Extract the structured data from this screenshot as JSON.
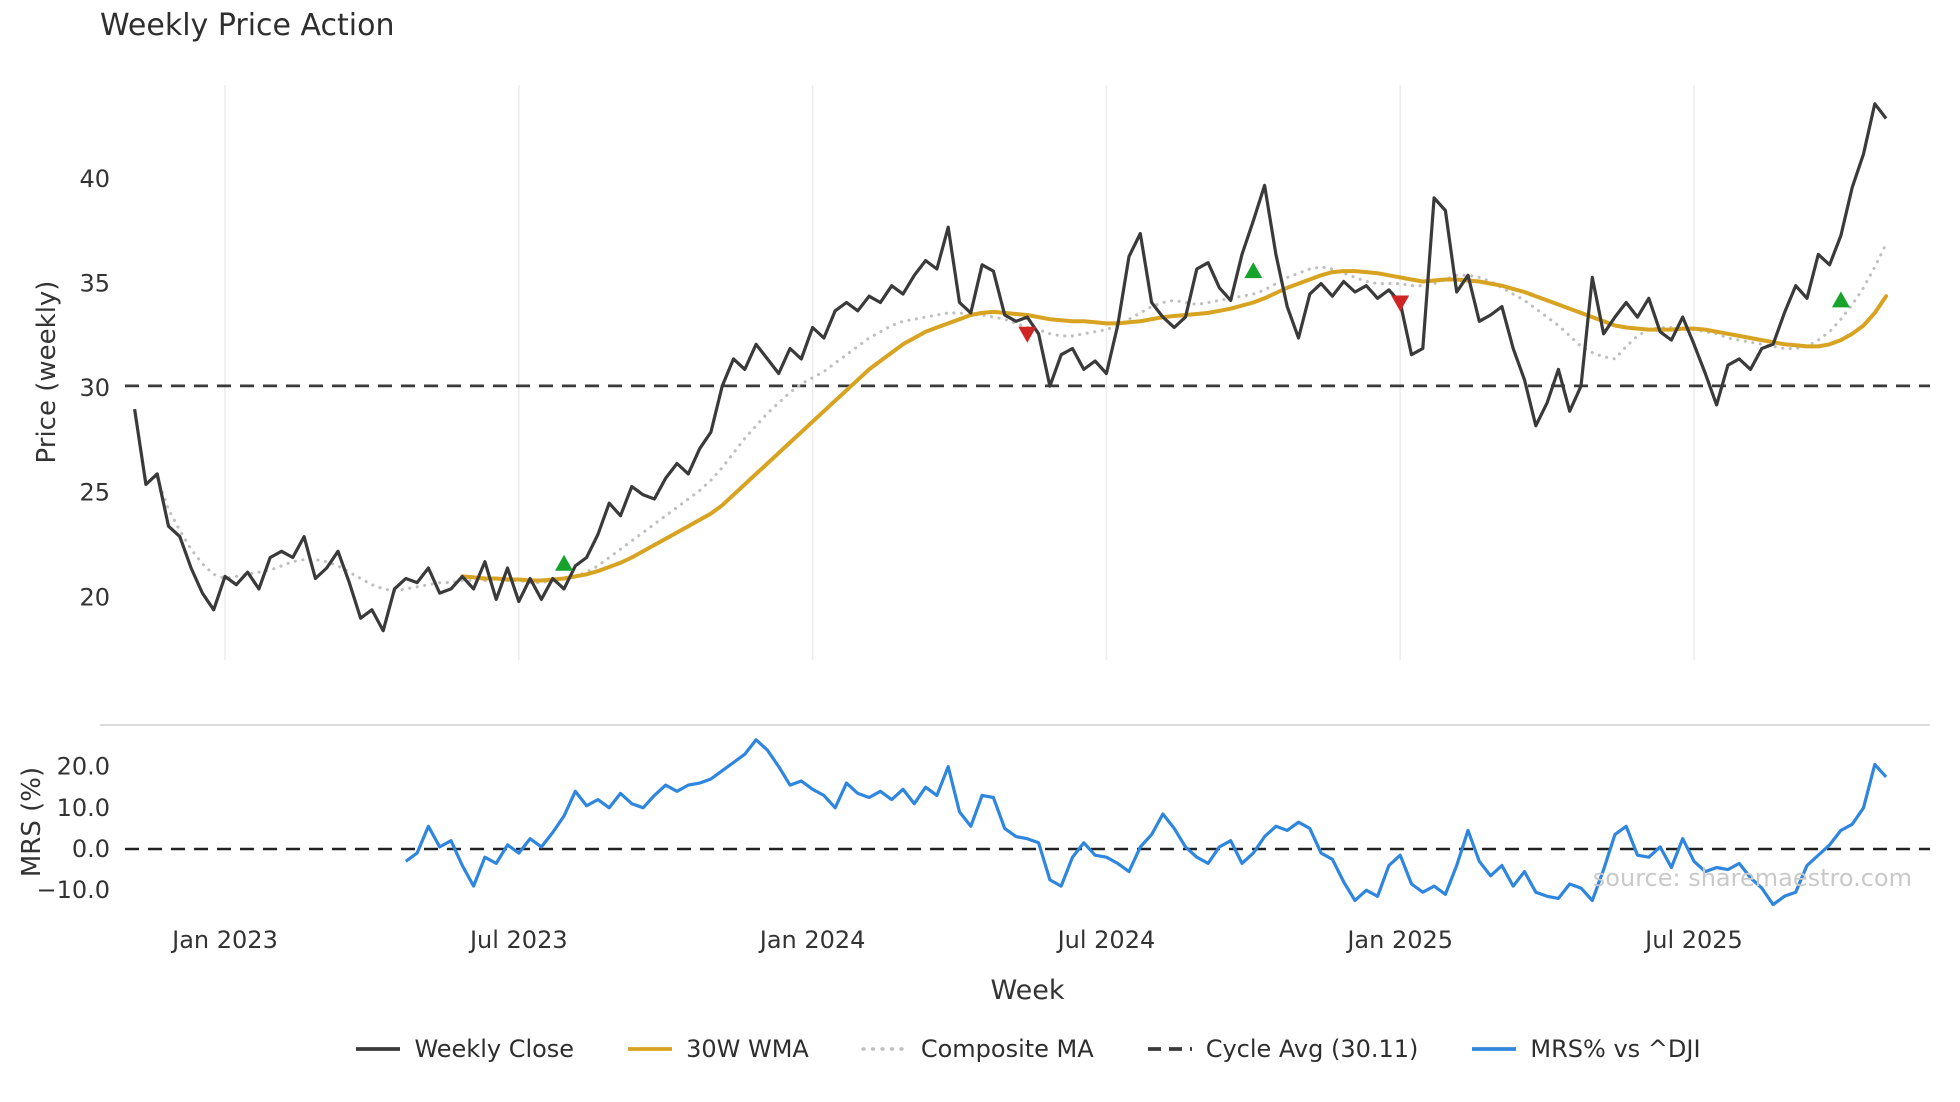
{
  "title": "Weekly Price Action",
  "watermark": "source: sharemaestro.com",
  "colors": {
    "close": "#3a3a3a",
    "wma": "#d7a321",
    "composite": "#bfbfbf",
    "cycle": "#3a3a3a",
    "mrs": "#2e86de",
    "buy": "#17a32b",
    "sell": "#cf2525",
    "grid": "#ededed",
    "tick": "#333333"
  },
  "legend": {
    "items": [
      {
        "label": "Weekly Close",
        "color": "#3a3a3a",
        "style": "solid"
      },
      {
        "label": "30W WMA",
        "color": "#d7a321",
        "style": "solid"
      },
      {
        "label": "Composite MA",
        "color": "#bfbfbf",
        "style": "dotted"
      },
      {
        "label": "Cycle Avg (30.11)",
        "color": "#3a3a3a",
        "style": "dashed"
      },
      {
        "label": "MRS% vs ^DJI",
        "color": "#2e86de",
        "style": "solid"
      }
    ]
  },
  "chart_data": {
    "type": "line",
    "title": "Weekly Price Action",
    "x_axis": {
      "label": "Week",
      "unit": "weekly index, week 0 ≈ early Nov 2022",
      "ticks": [
        {
          "week": 8,
          "label": "Jan 2023"
        },
        {
          "week": 34,
          "label": "Jul 2023"
        },
        {
          "week": 60,
          "label": "Jan 2024"
        },
        {
          "week": 86,
          "label": "Jul 2024"
        },
        {
          "week": 112,
          "label": "Jan 2025"
        },
        {
          "week": 138,
          "label": "Jul 2025"
        }
      ]
    },
    "panels": [
      {
        "name": "price",
        "ylabel": "Price (weekly)",
        "ylim": [
          17.0,
          44.5
        ],
        "grid": "vertical-only",
        "y_ticks": [
          {
            "value": 20,
            "label": "20"
          },
          {
            "value": 25,
            "label": "25"
          },
          {
            "value": 30,
            "label": "30"
          },
          {
            "value": 35,
            "label": "35"
          },
          {
            "value": 40,
            "label": "40"
          }
        ],
        "cycle_avg": 30.11,
        "series": [
          {
            "name": "Weekly Close",
            "color": "#3a3a3a",
            "style": "solid",
            "start_week": 0,
            "values": [
              29.0,
              25.4,
              25.9,
              23.4,
              22.9,
              21.4,
              20.2,
              19.4,
              21.0,
              20.6,
              21.2,
              20.4,
              21.9,
              22.2,
              21.9,
              22.9,
              20.9,
              21.4,
              22.2,
              20.7,
              19.0,
              19.4,
              18.4,
              20.4,
              20.9,
              20.7,
              21.4,
              20.2,
              20.4,
              21.0,
              20.4,
              21.7,
              19.9,
              21.4,
              19.8,
              20.9,
              19.9,
              20.9,
              20.4,
              21.5,
              21.9,
              23.0,
              24.5,
              23.9,
              25.3,
              24.9,
              24.7,
              25.7,
              26.4,
              25.9,
              27.1,
              27.9,
              30.1,
              31.4,
              30.9,
              32.1,
              31.4,
              30.7,
              31.9,
              31.4,
              32.9,
              32.4,
              33.7,
              34.1,
              33.7,
              34.4,
              34.1,
              34.9,
              34.5,
              35.4,
              36.1,
              35.7,
              37.7,
              34.1,
              33.6,
              35.9,
              35.6,
              33.5,
              33.2,
              33.4,
              32.6,
              30.1,
              31.6,
              31.9,
              30.9,
              31.3,
              30.7,
              33.0,
              36.3,
              37.4,
              34.1,
              33.4,
              32.9,
              33.4,
              35.7,
              36.0,
              34.8,
              34.2,
              36.4,
              38.0,
              39.7,
              36.4,
              33.9,
              32.4,
              34.5,
              35.0,
              34.4,
              35.1,
              34.6,
              34.9,
              34.3,
              34.7,
              34.1,
              31.6,
              31.9,
              39.1,
              38.5,
              34.6,
              35.4,
              33.2,
              33.5,
              33.9,
              31.9,
              30.4,
              28.2,
              29.3,
              30.9,
              28.9,
              30.1,
              35.3,
              32.6,
              33.4,
              34.1,
              33.4,
              34.3,
              32.7,
              32.3,
              33.4,
              32.1,
              30.7,
              29.2,
              31.1,
              31.4,
              30.9,
              31.9,
              32.1,
              33.6,
              34.9,
              34.3,
              36.4,
              35.9,
              37.3,
              39.6,
              41.2,
              43.6,
              42.9
            ]
          },
          {
            "name": "30W WMA",
            "color": "#d7a321",
            "style": "solid",
            "start_week": 29,
            "values": [
              21.0,
              20.95,
              20.9,
              20.9,
              20.85,
              20.85,
              20.8,
              20.8,
              20.85,
              20.9,
              21.0,
              21.1,
              21.25,
              21.45,
              21.65,
              21.9,
              22.2,
              22.5,
              22.8,
              23.1,
              23.4,
              23.7,
              24.0,
              24.4,
              24.9,
              25.4,
              25.9,
              26.4,
              26.9,
              27.4,
              27.9,
              28.4,
              28.9,
              29.4,
              29.9,
              30.4,
              30.9,
              31.3,
              31.7,
              32.1,
              32.4,
              32.7,
              32.9,
              33.1,
              33.3,
              33.5,
              33.6,
              33.65,
              33.6,
              33.55,
              33.5,
              33.4,
              33.3,
              33.25,
              33.2,
              33.2,
              33.15,
              33.1,
              33.1,
              33.15,
              33.2,
              33.3,
              33.4,
              33.45,
              33.5,
              33.55,
              33.6,
              33.7,
              33.8,
              33.95,
              34.1,
              34.3,
              34.55,
              34.8,
              35.0,
              35.2,
              35.4,
              35.55,
              35.6,
              35.6,
              35.55,
              35.5,
              35.4,
              35.3,
              35.2,
              35.1,
              35.15,
              35.2,
              35.2,
              35.15,
              35.1,
              35.0,
              34.9,
              34.75,
              34.6,
              34.4,
              34.2,
              34.0,
              33.8,
              33.6,
              33.4,
              33.2,
              33.0,
              32.9,
              32.85,
              32.8,
              32.8,
              32.8,
              32.85,
              32.85,
              32.8,
              32.7,
              32.6,
              32.5,
              32.4,
              32.3,
              32.2,
              32.1,
              32.05,
              32.0,
              32.0,
              32.1,
              32.3,
              32.6,
              33.0,
              33.6,
              34.4
            ]
          },
          {
            "name": "Composite MA",
            "color": "#bfbfbf",
            "style": "dotted",
            "start_week": 2,
            "values": [
              25.7,
              24.2,
              23.2,
              22.3,
              21.6,
              21.1,
              20.9,
              21.0,
              21.1,
              21.2,
              21.3,
              21.5,
              21.7,
              21.8,
              21.8,
              21.7,
              21.5,
              21.2,
              20.9,
              20.6,
              20.4,
              20.3,
              20.4,
              20.5,
              20.6,
              20.7,
              20.7,
              20.8,
              20.8,
              20.8,
              20.9,
              20.8,
              20.8,
              20.7,
              20.7,
              20.8,
              20.9,
              21.0,
              21.2,
              21.5,
              21.9,
              22.3,
              22.7,
              23.1,
              23.5,
              23.9,
              24.3,
              24.7,
              25.1,
              25.6,
              26.2,
              26.9,
              27.6,
              28.2,
              28.8,
              29.3,
              29.8,
              30.2,
              30.5,
              30.8,
              31.2,
              31.6,
              32.0,
              32.4,
              32.7,
              33.0,
              33.2,
              33.3,
              33.4,
              33.5,
              33.6,
              33.6,
              33.5,
              33.5,
              33.4,
              33.3,
              33.1,
              32.9,
              32.8,
              32.6,
              32.5,
              32.5,
              32.6,
              32.7,
              32.8,
              33.0,
              33.3,
              33.6,
              33.9,
              34.1,
              34.2,
              34.1,
              34.0,
              34.1,
              34.2,
              34.3,
              34.4,
              34.5,
              34.7,
              35.0,
              35.3,
              35.5,
              35.7,
              35.8,
              35.7,
              35.5,
              35.3,
              35.1,
              35.0,
              35.0,
              35.0,
              34.9,
              34.9,
              35.0,
              35.2,
              35.4,
              35.4,
              35.3,
              35.1,
              34.8,
              34.5,
              34.2,
              33.8,
              33.4,
              33.0,
              32.5,
              32.0,
              31.7,
              31.5,
              31.4,
              32.0,
              32.5,
              32.8,
              32.9,
              32.9,
              32.8,
              32.8,
              32.7,
              32.6,
              32.4,
              32.3,
              32.2,
              32.1,
              32.0,
              31.9,
              31.9,
              32.0,
              32.3,
              32.7,
              33.3,
              34.0,
              34.8,
              35.8,
              36.9
            ]
          }
        ],
        "buy_signals": [
          {
            "week": 38,
            "price": 21.6
          },
          {
            "week": 99,
            "price": 35.6
          },
          {
            "week": 151,
            "price": 34.2
          }
        ],
        "sell_signals": [
          {
            "week": 79,
            "price": 32.6
          },
          {
            "week": 112,
            "price": 34.1
          }
        ]
      },
      {
        "name": "mrs",
        "ylabel": "MRS (%)",
        "ylim": [
          -15.3,
          30.1
        ],
        "y_ticks": [
          {
            "value": 20,
            "label": "20.0"
          },
          {
            "value": 10,
            "label": "10.0"
          },
          {
            "value": 0,
            "label": "0.0"
          },
          {
            "value": -10,
            "label": "−10.0"
          }
        ],
        "zero_line": 0.0,
        "series": [
          {
            "name": "MRS% vs ^DJI",
            "color": "#2e86de",
            "style": "solid",
            "start_week": 24,
            "values": [
              -3.0,
              -1.0,
              5.5,
              0.5,
              2.0,
              -4.0,
              -9.0,
              -2.0,
              -3.5,
              1.0,
              -1.0,
              2.5,
              0.5,
              4.0,
              8.0,
              14.0,
              10.5,
              12.0,
              10.0,
              13.5,
              11.0,
              10.0,
              13.0,
              15.5,
              14.0,
              15.5,
              16.0,
              17.0,
              19.0,
              21.0,
              23.0,
              26.5,
              24.0,
              20.0,
              15.5,
              16.5,
              14.5,
              13.0,
              10.0,
              16.0,
              13.5,
              12.5,
              14.0,
              12.0,
              14.5,
              11.0,
              15.0,
              13.0,
              20.0,
              9.0,
              5.5,
              13.0,
              12.5,
              5.0,
              3.0,
              2.5,
              1.5,
              -7.5,
              -9.0,
              -2.0,
              1.5,
              -1.5,
              -2.0,
              -3.5,
              -5.5,
              0.5,
              3.5,
              8.5,
              5.0,
              0.5,
              -2.0,
              -3.5,
              0.5,
              2.0,
              -3.5,
              -1.0,
              3.0,
              5.5,
              4.5,
              6.5,
              5.0,
              -1.0,
              -2.5,
              -8.0,
              -12.5,
              -10.0,
              -11.5,
              -4.0,
              -1.5,
              -8.5,
              -10.5,
              -9.0,
              -11.0,
              -4.0,
              4.5,
              -3.0,
              -6.5,
              -4.0,
              -9.0,
              -5.5,
              -10.5,
              -11.5,
              -12.0,
              -8.5,
              -9.5,
              -12.5,
              -5.0,
              3.5,
              5.5,
              -1.5,
              -2.0,
              0.5,
              -4.5,
              2.5,
              -3.0,
              -5.5,
              -4.5,
              -5.0,
              -3.5,
              -7.0,
              -9.5,
              -13.5,
              -11.5,
              -10.5,
              -4.0,
              -1.5,
              1.0,
              4.5,
              6.0,
              10.0,
              20.5,
              17.5
            ]
          }
        ]
      }
    ]
  }
}
